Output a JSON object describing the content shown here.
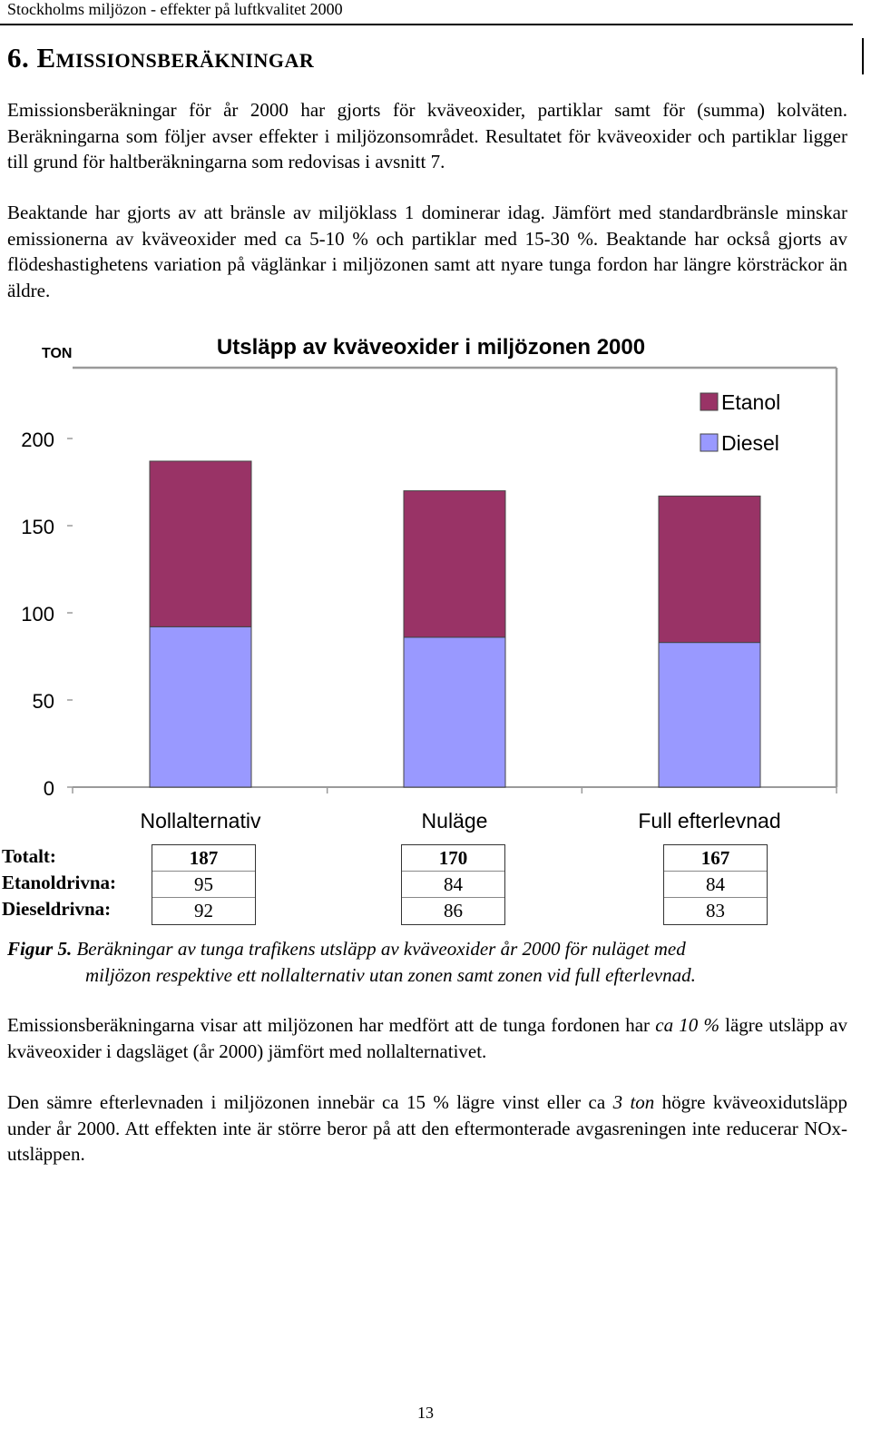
{
  "header": {
    "running_title": "Stockholms miljözon - effekter på luftkvalitet 2000"
  },
  "section": {
    "title": "6. Emissionsberäkningar"
  },
  "paragraphs": {
    "p1": "Emissionsberäkningar för år 2000 har gjorts för kväveoxider, partiklar samt för (summa) kolväten. Beräkningarna som följer avser effekter i miljözonsområdet. Resultatet för kväveoxider och partiklar ligger till grund för haltberäkningarna som redovisas i avsnitt 7.",
    "p2": "Beaktande har gjorts av att bränsle av miljöklass 1 dominerar idag. Jämfört med standardbränsle minskar emissionerna av kväveoxider med ca 5-10 % och partiklar med 15-30 %. Beaktande har också gjorts av flödeshastighetens variation på väglänkar i miljözonen samt att nyare tunga fordon har längre körsträckor än äldre.",
    "p3_a": "Emissionsberäkningarna visar att miljözonen har medfört att de tunga fordonen har ",
    "p3_em": "ca 10 %",
    "p3_b": " lägre utsläpp av kväveoxider i dagsläget (år 2000) jämfört med nollalternativet.",
    "p4_a": "Den sämre efterlevnaden i miljözonen innebär ca 15 % lägre vinst eller ca ",
    "p4_em": "3 ton",
    "p4_b": " högre kväveoxidutsläpp under år 2000. Att effekten inte är större beror på att den eftermonterade avgasreningen inte reducerar NOx-utsläppen."
  },
  "chart_data": {
    "type": "bar",
    "stacked": true,
    "title": "Utsläpp av kväveoxider i miljözonen 2000",
    "ylabel": "TON",
    "xlabel": "",
    "ylim": [
      0,
      200
    ],
    "yticks": [
      0,
      50,
      100,
      150,
      200
    ],
    "grid": false,
    "legend_position": "top-right",
    "categories": [
      "Nollalternativ",
      "Nuläge",
      "Full efterlevnad"
    ],
    "series": [
      {
        "name": "Diesel",
        "color": "#9999ff",
        "values": [
          92,
          86,
          83
        ]
      },
      {
        "name": "Etanol",
        "color": "#993366",
        "values": [
          95,
          84,
          84
        ]
      }
    ],
    "legend_order": [
      "Etanol",
      "Diesel"
    ]
  },
  "summary": {
    "row_labels": [
      "Totalt:",
      "Etanoldrivna:",
      "Dieseldrivna:"
    ],
    "columns": [
      {
        "total": "187",
        "etanol": "95",
        "diesel": "92"
      },
      {
        "total": "170",
        "etanol": "84",
        "diesel": "86"
      },
      {
        "total": "167",
        "etanol": "84",
        "diesel": "83"
      }
    ]
  },
  "caption": {
    "label": "Figur 5.",
    "line1": "Beräkningar av tunga trafikens utsläpp av kväveoxider år 2000 för nuläget med",
    "line2": "miljözon respektive ett nollalternativ utan zonen samt zonen vid full efterlevnad."
  },
  "footer": {
    "page_number": "13"
  }
}
